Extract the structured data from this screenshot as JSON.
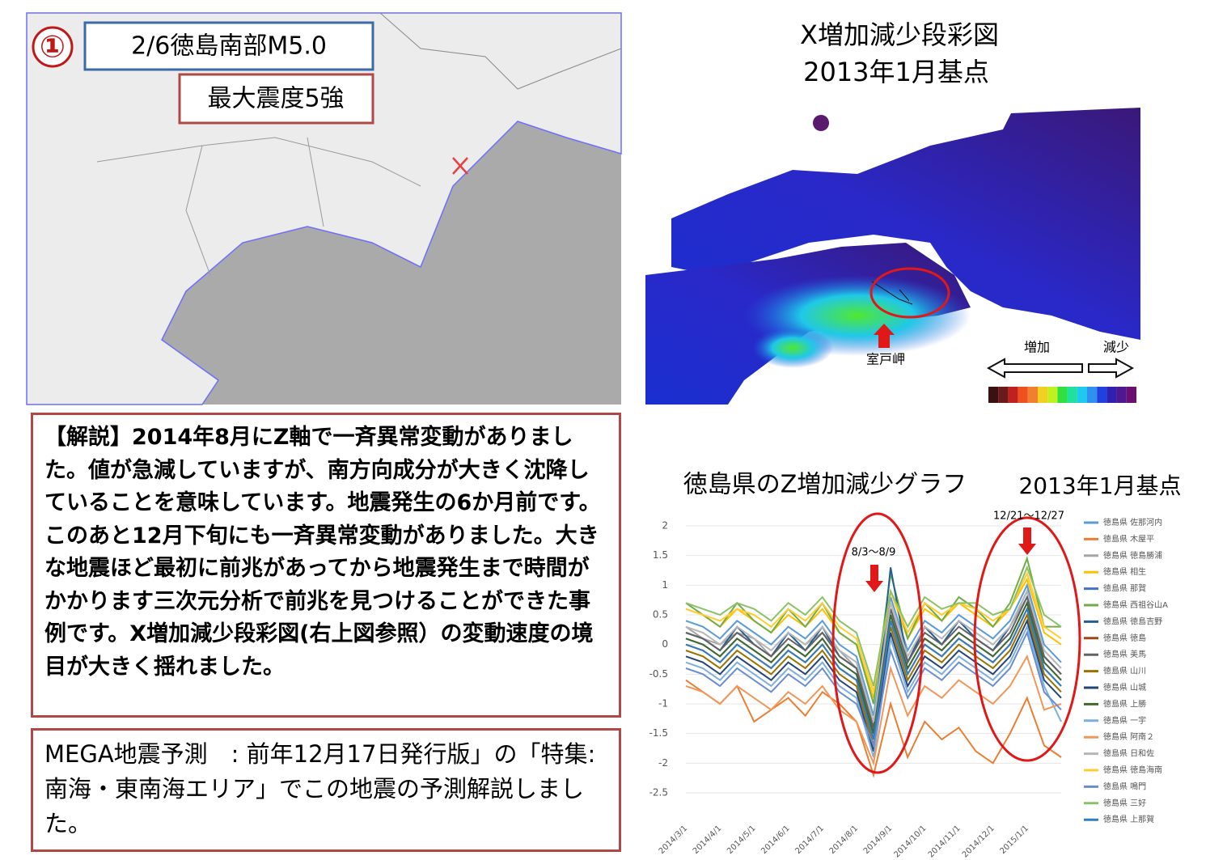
{
  "page": {
    "event_number": "①",
    "event_title": "2/6徳島南部M5.0",
    "intensity": "最大震度5強",
    "map_title": "X増加減少段彩図",
    "map_subtitle": "2013年1月基点",
    "cape_label": "室戸岬",
    "scale_increase": "増加",
    "scale_decrease": "減少",
    "explanation": "【解説】2014年8月にZ軸で一斉異常変動がありました。値が急減していますが、南方向成分が大きく沈降していることを意味しています。地震発生の6か月前です。このあと12月下旬にも一斉異常変動がありました。大きな地震ほど最初に前兆があってから地震発生まで時間がかかります三次元分析で前兆を見つけることができた事例です。X増加減少段彩図(右上図参照）の変動速度の境目が大きく揺れました。",
    "note": "MEGA地震予測　: 前年12月17日発行版」の「特集:南海・東南海エリア」でこの地震の予測解説しました。"
  },
  "chart_data": {
    "type": "line",
    "title": "徳島県のZ増加減少グラフ",
    "subtitle": "2013年1月基点",
    "annotations": [
      "8/3～8/9",
      "12/21～12/27"
    ],
    "categories": [
      "2014/3/1",
      null,
      "2014/4/1",
      null,
      "2014/5/1",
      null,
      "2014/6/1",
      null,
      "2014/7/1",
      null,
      "2014/8/1",
      null,
      "2014/9/1",
      null,
      "2014/10/1",
      null,
      "2014/11/1",
      null,
      "2014/12/1",
      null,
      "2015/1/1",
      null,
      null
    ],
    "ylim": [
      -2.5,
      2
    ],
    "yticks": [
      -2.5,
      -2,
      -1.5,
      -1,
      -0.5,
      0,
      0.5,
      1,
      1.5,
      2
    ],
    "grid": true,
    "series": [
      {
        "name": "徳島県 佐那河内",
        "color": "#5b9bd5",
        "values": [
          0.4,
          0.3,
          0.1,
          0.4,
          0.2,
          0.0,
          0.3,
          0.1,
          0.4,
          0.0,
          -0.2,
          -1.2,
          0.8,
          -0.1,
          0.4,
          0.2,
          0.5,
          0.3,
          0.1,
          0.4,
          1.0,
          0.0,
          -0.3
        ]
      },
      {
        "name": "徳島県 木屋平",
        "color": "#ed7d31",
        "values": [
          -0.6,
          -0.8,
          -1.0,
          -0.7,
          -1.3,
          -1.1,
          -0.9,
          -1.2,
          -0.8,
          -1.0,
          -1.3,
          -2.2,
          -1.0,
          -1.9,
          -1.3,
          -1.6,
          -1.4,
          -1.8,
          -2.0,
          -1.5,
          -0.9,
          -1.7,
          -1.9
        ]
      },
      {
        "name": "徳島県 徳島勝浦",
        "color": "#a5a5a5",
        "values": [
          0.3,
          0.1,
          0.0,
          0.2,
          0.1,
          -0.2,
          0.2,
          0.0,
          0.2,
          -0.1,
          -0.4,
          -1.4,
          0.6,
          -0.3,
          0.3,
          0.0,
          0.4,
          0.1,
          -0.1,
          0.3,
          0.8,
          -0.2,
          -0.5
        ]
      },
      {
        "name": "徳島県 相生",
        "color": "#ffc000",
        "values": [
          0.6,
          0.5,
          0.3,
          0.6,
          0.4,
          0.2,
          0.5,
          0.3,
          0.6,
          0.2,
          0.0,
          -0.9,
          0.9,
          0.1,
          0.6,
          0.4,
          0.7,
          0.5,
          0.3,
          0.6,
          1.1,
          0.2,
          0.0
        ]
      },
      {
        "name": "徳島県 那賀",
        "color": "#4472c4",
        "values": [
          0.1,
          0.0,
          -0.2,
          0.1,
          -0.1,
          -0.3,
          0.0,
          -0.2,
          0.1,
          -0.3,
          -0.5,
          -1.6,
          0.5,
          -0.4,
          0.1,
          -0.1,
          0.2,
          0.0,
          -0.2,
          0.1,
          0.7,
          -0.3,
          -0.6
        ]
      },
      {
        "name": "徳島県 西祖谷山A",
        "color": "#70ad47",
        "values": [
          0.7,
          0.5,
          0.3,
          0.7,
          0.4,
          0.2,
          0.6,
          0.3,
          0.7,
          0.2,
          0.0,
          -1.0,
          1.2,
          0.1,
          0.7,
          0.4,
          0.8,
          0.6,
          0.3,
          0.7,
          1.45,
          0.3,
          0.3
        ]
      },
      {
        "name": "徳島県 徳島吉野",
        "color": "#255e91",
        "values": [
          0.2,
          0.1,
          -0.1,
          0.3,
          0.0,
          -0.2,
          0.2,
          -0.1,
          0.3,
          -0.2,
          -0.4,
          -1.5,
          1.3,
          -0.3,
          0.3,
          0.0,
          0.4,
          0.1,
          -0.1,
          0.3,
          0.9,
          -0.2,
          -0.5
        ]
      },
      {
        "name": "徳島県 徳島",
        "color": "#9e480e",
        "values": [
          0.0,
          -0.1,
          -0.3,
          0.0,
          -0.2,
          -0.4,
          -0.1,
          -0.3,
          0.0,
          -0.4,
          -0.6,
          -1.6,
          0.4,
          -0.5,
          0.0,
          -0.2,
          0.1,
          -0.1,
          -0.3,
          0.0,
          0.6,
          -0.4,
          -0.7
        ]
      },
      {
        "name": "徳島県 美馬",
        "color": "#636363",
        "values": [
          0.2,
          0.1,
          -0.1,
          0.2,
          0.0,
          -0.2,
          0.1,
          -0.1,
          0.2,
          -0.2,
          -0.4,
          -1.4,
          0.6,
          -0.3,
          0.2,
          0.0,
          0.3,
          0.1,
          -0.1,
          0.2,
          0.8,
          -0.2,
          -0.5
        ]
      },
      {
        "name": "徳島県 山川",
        "color": "#997300",
        "values": [
          -0.1,
          -0.2,
          -0.4,
          -0.1,
          -0.3,
          -0.5,
          -0.2,
          -0.4,
          -0.1,
          -0.5,
          -0.7,
          -1.7,
          0.3,
          -0.6,
          -0.1,
          -0.3,
          0.0,
          -0.2,
          -0.4,
          -0.1,
          0.5,
          -0.5,
          -0.8
        ]
      },
      {
        "name": "徳島県 山城",
        "color": "#264478",
        "values": [
          -0.2,
          -0.3,
          -0.5,
          -0.2,
          -0.4,
          -0.6,
          -0.3,
          -0.5,
          -0.2,
          -0.6,
          -0.8,
          -1.8,
          0.2,
          -0.7,
          -0.2,
          -0.4,
          -0.1,
          -0.3,
          -0.5,
          -0.2,
          0.4,
          -0.6,
          -0.9
        ]
      },
      {
        "name": "徳島県 上勝",
        "color": "#43682b",
        "values": [
          0.1,
          0.0,
          -0.2,
          0.1,
          -0.1,
          -0.3,
          0.0,
          -0.2,
          0.1,
          -0.3,
          -0.5,
          -1.5,
          0.5,
          -0.4,
          0.1,
          -0.1,
          0.2,
          0.0,
          -0.2,
          0.1,
          0.7,
          -0.3,
          -0.6
        ]
      },
      {
        "name": "徳島県 一宇",
        "color": "#7cafdd",
        "values": [
          -0.3,
          -0.4,
          -0.6,
          -0.3,
          -0.5,
          -0.7,
          -0.4,
          -0.6,
          -0.3,
          -0.7,
          -0.9,
          -1.9,
          0.1,
          -0.8,
          -0.3,
          -0.5,
          -0.2,
          -0.4,
          -0.6,
          -0.3,
          0.3,
          -0.7,
          -1.3
        ]
      },
      {
        "name": "徳島県 阿南２",
        "color": "#f1975a",
        "values": [
          -0.7,
          -0.8,
          -1.0,
          -0.7,
          -0.9,
          -1.1,
          -0.8,
          -1.0,
          -0.7,
          -1.1,
          -1.3,
          -2.0,
          -0.4,
          -1.2,
          -0.7,
          -0.9,
          -0.6,
          -0.8,
          -1.0,
          -0.7,
          -0.2,
          -1.1,
          -1.0
        ]
      },
      {
        "name": "徳島県 日和佐",
        "color": "#b7b7b7",
        "values": [
          0.3,
          0.2,
          0.0,
          0.3,
          0.1,
          -0.1,
          0.2,
          0.0,
          0.3,
          -0.1,
          -0.3,
          -1.3,
          0.7,
          -0.2,
          0.3,
          0.1,
          0.4,
          0.2,
          0.0,
          0.3,
          0.9,
          -0.1,
          -0.4
        ]
      },
      {
        "name": "徳島県 徳島海南",
        "color": "#ffcd33",
        "values": [
          0.6,
          0.5,
          0.4,
          0.6,
          0.5,
          0.3,
          0.6,
          0.4,
          0.7,
          0.3,
          0.1,
          -0.8,
          0.9,
          0.2,
          0.7,
          0.5,
          0.7,
          0.6,
          0.4,
          0.6,
          1.2,
          0.3,
          0.1
        ]
      },
      {
        "name": "徳島県 鳴門",
        "color": "#698ed0",
        "values": [
          -0.4,
          -0.5,
          -0.7,
          -0.4,
          -0.6,
          -0.8,
          -0.5,
          -0.7,
          -0.4,
          -0.8,
          -1.0,
          -1.7,
          -0.1,
          -0.9,
          -0.4,
          -0.6,
          -0.3,
          -0.5,
          -0.7,
          -0.4,
          0.2,
          -0.8,
          -1.1
        ]
      },
      {
        "name": "徳島県 三好",
        "color": "#8cc168",
        "values": [
          0.7,
          0.6,
          0.5,
          0.7,
          0.6,
          0.4,
          0.7,
          0.5,
          0.8,
          0.4,
          0.2,
          -0.7,
          0.9,
          0.3,
          0.8,
          0.6,
          0.7,
          0.7,
          0.5,
          0.6,
          1.3,
          0.5,
          0.3
        ]
      },
      {
        "name": "徳島県 上那賀",
        "color": "#327dc2",
        "values": [
          0.0,
          -0.1,
          -0.3,
          0.0,
          -0.2,
          -0.4,
          -0.1,
          -0.3,
          0.0,
          -0.4,
          -0.6,
          -1.6,
          0.4,
          -0.5,
          0.0,
          -0.2,
          0.1,
          -0.1,
          -0.3,
          0.0,
          0.6,
          -0.4,
          -0.7
        ]
      }
    ]
  }
}
